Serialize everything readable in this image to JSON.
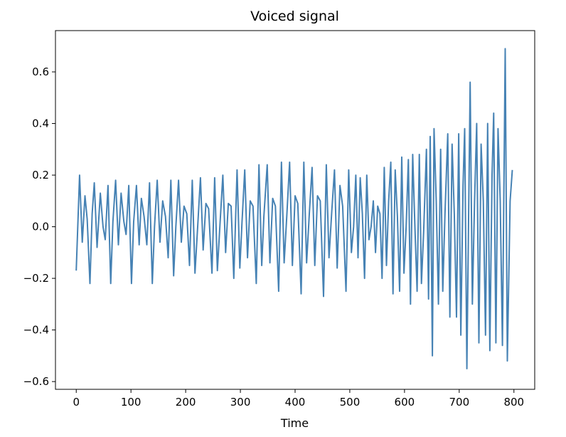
{
  "chart_data": {
    "type": "line",
    "title": "Voiced signal",
    "xlabel": "Time",
    "ylabel": "",
    "xlim": [
      -38,
      838
    ],
    "ylim": [
      -0.63,
      0.76
    ],
    "grid": false,
    "legend": "none",
    "x_ticks": [
      0,
      100,
      200,
      300,
      400,
      500,
      600,
      700,
      800
    ],
    "x_tick_labels": [
      "0",
      "100",
      "200",
      "300",
      "400",
      "500",
      "600",
      "700",
      "800"
    ],
    "y_ticks": [
      -0.6,
      -0.4,
      -0.2,
      0.0,
      0.2,
      0.4,
      0.6
    ],
    "y_tick_labels": [
      "−0.6",
      "−0.4",
      "−0.2",
      "0.0",
      "0.2",
      "0.4",
      "0.6"
    ],
    "series": [
      {
        "color": "#4682b4",
        "points": [
          [
            0,
            -0.17
          ],
          [
            6,
            0.2
          ],
          [
            11,
            -0.06
          ],
          [
            16,
            0.12
          ],
          [
            20,
            0.03
          ],
          [
            25,
            -0.22
          ],
          [
            29,
            0.05
          ],
          [
            33,
            0.17
          ],
          [
            38,
            -0.08
          ],
          [
            44,
            0.13
          ],
          [
            49,
            0.0
          ],
          [
            53,
            -0.05
          ],
          [
            58,
            0.16
          ],
          [
            63,
            -0.22
          ],
          [
            67,
            0.02
          ],
          [
            72,
            0.18
          ],
          [
            77,
            -0.07
          ],
          [
            82,
            0.13
          ],
          [
            87,
            0.02
          ],
          [
            91,
            -0.03
          ],
          [
            96,
            0.16
          ],
          [
            101,
            -0.22
          ],
          [
            105,
            0.02
          ],
          [
            110,
            0.16
          ],
          [
            115,
            -0.07
          ],
          [
            119,
            0.11
          ],
          [
            124,
            0.04
          ],
          [
            129,
            -0.07
          ],
          [
            134,
            0.17
          ],
          [
            139,
            -0.22
          ],
          [
            143,
            0.0
          ],
          [
            148,
            0.18
          ],
          [
            153,
            -0.06
          ],
          [
            158,
            0.1
          ],
          [
            163,
            0.04
          ],
          [
            168,
            -0.12
          ],
          [
            173,
            0.18
          ],
          [
            178,
            -0.19
          ],
          [
            182,
            0.0
          ],
          [
            187,
            0.18
          ],
          [
            192,
            -0.06
          ],
          [
            197,
            0.08
          ],
          [
            202,
            0.05
          ],
          [
            207,
            -0.15
          ],
          [
            212,
            0.18
          ],
          [
            217,
            -0.18
          ],
          [
            222,
            0.0
          ],
          [
            227,
            0.19
          ],
          [
            232,
            -0.09
          ],
          [
            237,
            0.09
          ],
          [
            242,
            0.07
          ],
          [
            248,
            -0.18
          ],
          [
            253,
            0.19
          ],
          [
            258,
            -0.17
          ],
          [
            263,
            0.02
          ],
          [
            268,
            0.2
          ],
          [
            273,
            -0.1
          ],
          [
            278,
            0.09
          ],
          [
            283,
            0.08
          ],
          [
            288,
            -0.2
          ],
          [
            294,
            0.22
          ],
          [
            299,
            -0.16
          ],
          [
            303,
            0.02
          ],
          [
            308,
            0.22
          ],
          [
            313,
            -0.12
          ],
          [
            318,
            0.1
          ],
          [
            323,
            0.08
          ],
          [
            329,
            -0.22
          ],
          [
            334,
            0.24
          ],
          [
            339,
            -0.15
          ],
          [
            343,
            0.04
          ],
          [
            349,
            0.24
          ],
          [
            354,
            -0.14
          ],
          [
            359,
            0.11
          ],
          [
            364,
            0.08
          ],
          [
            370,
            -0.25
          ],
          [
            375,
            0.25
          ],
          [
            380,
            -0.14
          ],
          [
            385,
            0.05
          ],
          [
            390,
            0.25
          ],
          [
            395,
            -0.15
          ],
          [
            400,
            0.12
          ],
          [
            405,
            0.09
          ],
          [
            411,
            -0.26
          ],
          [
            416,
            0.25
          ],
          [
            421,
            -0.14
          ],
          [
            426,
            0.05
          ],
          [
            431,
            0.23
          ],
          [
            436,
            -0.15
          ],
          [
            441,
            0.12
          ],
          [
            446,
            0.1
          ],
          [
            452,
            -0.27
          ],
          [
            457,
            0.24
          ],
          [
            462,
            -0.12
          ],
          [
            467,
            0.06
          ],
          [
            472,
            0.22
          ],
          [
            477,
            -0.16
          ],
          [
            482,
            0.16
          ],
          [
            487,
            0.08
          ],
          [
            493,
            -0.25
          ],
          [
            498,
            0.22
          ],
          [
            503,
            -0.1
          ],
          [
            507,
            0.0
          ],
          [
            511,
            0.2
          ],
          [
            515,
            -0.12
          ],
          [
            519,
            0.19
          ],
          [
            523,
            0.05
          ],
          [
            527,
            -0.2
          ],
          [
            531,
            0.2
          ],
          [
            535,
            -0.05
          ],
          [
            539,
            0.0
          ],
          [
            543,
            0.1
          ],
          [
            547,
            -0.1
          ],
          [
            551,
            0.08
          ],
          [
            555,
            0.05
          ],
          [
            559,
            -0.2
          ],
          [
            563,
            0.23
          ],
          [
            567,
            -0.15
          ],
          [
            571,
            0.1
          ],
          [
            575,
            0.25
          ],
          [
            579,
            -0.26
          ],
          [
            583,
            0.22
          ],
          [
            587,
            0.04
          ],
          [
            591,
            -0.25
          ],
          [
            595,
            0.27
          ],
          [
            599,
            -0.18
          ],
          [
            603,
            0.0
          ],
          [
            607,
            0.26
          ],
          [
            611,
            -0.3
          ],
          [
            615,
            0.28
          ],
          [
            619,
            0.0
          ],
          [
            623,
            -0.25
          ],
          [
            627,
            0.28
          ],
          [
            631,
            -0.22
          ],
          [
            635,
            -0.02
          ],
          [
            640,
            0.3
          ],
          [
            644,
            -0.28
          ],
          [
            647,
            0.35
          ],
          [
            651,
            -0.5
          ],
          [
            654,
            0.38
          ],
          [
            658,
            0.1
          ],
          [
            662,
            -0.3
          ],
          [
            666,
            0.3
          ],
          [
            670,
            -0.25
          ],
          [
            674,
            0.05
          ],
          [
            679,
            0.36
          ],
          [
            683,
            -0.35
          ],
          [
            687,
            0.32
          ],
          [
            691,
            0.05
          ],
          [
            695,
            -0.35
          ],
          [
            699,
            0.36
          ],
          [
            703,
            -0.42
          ],
          [
            707,
            0.16
          ],
          [
            710,
            0.38
          ],
          [
            714,
            -0.55
          ],
          [
            720,
            0.56
          ],
          [
            724,
            -0.3
          ],
          [
            728,
            0.1
          ],
          [
            732,
            0.4
          ],
          [
            736,
            -0.45
          ],
          [
            740,
            0.32
          ],
          [
            744,
            0.1
          ],
          [
            748,
            -0.42
          ],
          [
            752,
            0.4
          ],
          [
            756,
            -0.48
          ],
          [
            760,
            0.2
          ],
          [
            763,
            0.44
          ],
          [
            767,
            -0.45
          ],
          [
            771,
            0.38
          ],
          [
            775,
            0.1
          ],
          [
            779,
            -0.46
          ],
          [
            784,
            0.69
          ],
          [
            788,
            -0.52
          ],
          [
            793,
            0.1
          ],
          [
            797,
            0.22
          ]
        ]
      }
    ]
  }
}
